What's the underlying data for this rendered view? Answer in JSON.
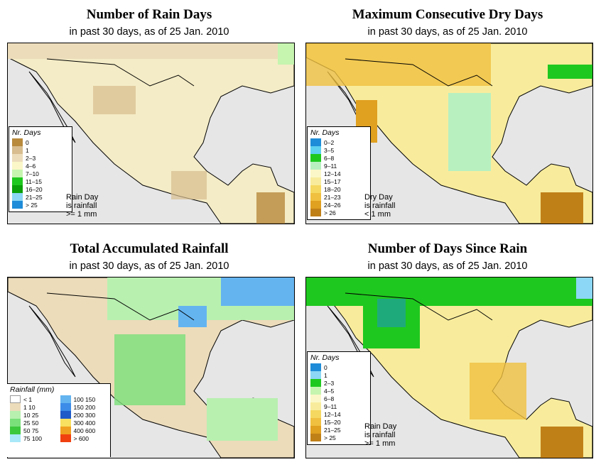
{
  "panels": {
    "rain_days": {
      "title": "Number of Rain Days",
      "subtitle": "in past 30 days, as of  25 Jan. 2010",
      "legend_title": "Nr. Days",
      "legend": [
        {
          "label": "0",
          "color": "#b88a3c"
        },
        {
          "label": "1",
          "color": "#d7bd8f"
        },
        {
          "label": "2–3",
          "color": "#ecdcba"
        },
        {
          "label": "4–6",
          "color": "#fbf7c8"
        },
        {
          "label": "7–10",
          "color": "#c6f5b0"
        },
        {
          "label": "11–15",
          "color": "#1fc81f"
        },
        {
          "label": "16–20",
          "color": "#0aa00a"
        },
        {
          "label": "21–25",
          "color": "#8cd7f5"
        },
        {
          "label": "> 25",
          "color": "#1e8cd8"
        }
      ],
      "note": [
        "Rain Day",
        "is rainfall",
        ">= 1 mm"
      ]
    },
    "dry_days": {
      "title": "Maximum Consecutive Dry Days",
      "subtitle": "in past 30 days, as of  25 Jan. 2010",
      "legend_title": "Nr. Days",
      "legend": [
        {
          "label": "0–2",
          "color": "#1e8cd8"
        },
        {
          "label": "3–5",
          "color": "#5ed0f0"
        },
        {
          "label": "6–8",
          "color": "#1fc81f"
        },
        {
          "label": "9–11",
          "color": "#b8f0c0"
        },
        {
          "label": "12–14",
          "color": "#fbf7c8"
        },
        {
          "label": "15–17",
          "color": "#f8ec9c"
        },
        {
          "label": "18–20",
          "color": "#f5d860"
        },
        {
          "label": "21–23",
          "color": "#f0c040"
        },
        {
          "label": "24–26",
          "color": "#e0a020"
        },
        {
          "label": "> 26",
          "color": "#c08018"
        }
      ],
      "note": [
        "Dry Day",
        "is rainfall",
        "< 1 mm"
      ]
    },
    "rainfall": {
      "title": "Total Accumulated Rainfall",
      "subtitle": "in past 30 days, as of  25 Jan. 2010",
      "legend_title": "Rainfall (mm)",
      "legend_left": [
        {
          "label": "< 1",
          "color": "#ffffff"
        },
        {
          "label": "1   10",
          "color": "#ecdcba"
        },
        {
          "label": "10   25",
          "color": "#b8f0b0"
        },
        {
          "label": "25   50",
          "color": "#7ae07a"
        },
        {
          "label": "50   75",
          "color": "#3cc83c"
        },
        {
          "label": "75  100",
          "color": "#a8e8f8"
        }
      ],
      "legend_right": [
        {
          "label": "100  150",
          "color": "#64b4f0"
        },
        {
          "label": "150  200",
          "color": "#3c8ce8"
        },
        {
          "label": "200  300",
          "color": "#1e5ac8"
        },
        {
          "label": "300  400",
          "color": "#f8e060"
        },
        {
          "label": "400  600",
          "color": "#f0a020"
        },
        {
          "label": "> 600",
          "color": "#f04010"
        }
      ]
    },
    "since_rain": {
      "title": "Number of Days Since Rain",
      "subtitle": "in past 30 days, as of  25 Jan. 2010",
      "legend_title": "Nr. Days",
      "legend": [
        {
          "label": "0",
          "color": "#1e8cd8"
        },
        {
          "label": "1",
          "color": "#8cd7f5"
        },
        {
          "label": "2–3",
          "color": "#1fc81f"
        },
        {
          "label": "4–5",
          "color": "#c6f5b0"
        },
        {
          "label": "6–8",
          "color": "#fbf7c8"
        },
        {
          "label": "9–11",
          "color": "#f8ec9c"
        },
        {
          "label": "12–14",
          "color": "#f5d860"
        },
        {
          "label": "15–20",
          "color": "#f0c040"
        },
        {
          "label": "21–25",
          "color": "#e0a020"
        },
        {
          "label": "> 25",
          "color": "#c08018"
        }
      ],
      "note": [
        "Rain Day",
        "is rainfall",
        ">= 1 mm"
      ]
    }
  }
}
